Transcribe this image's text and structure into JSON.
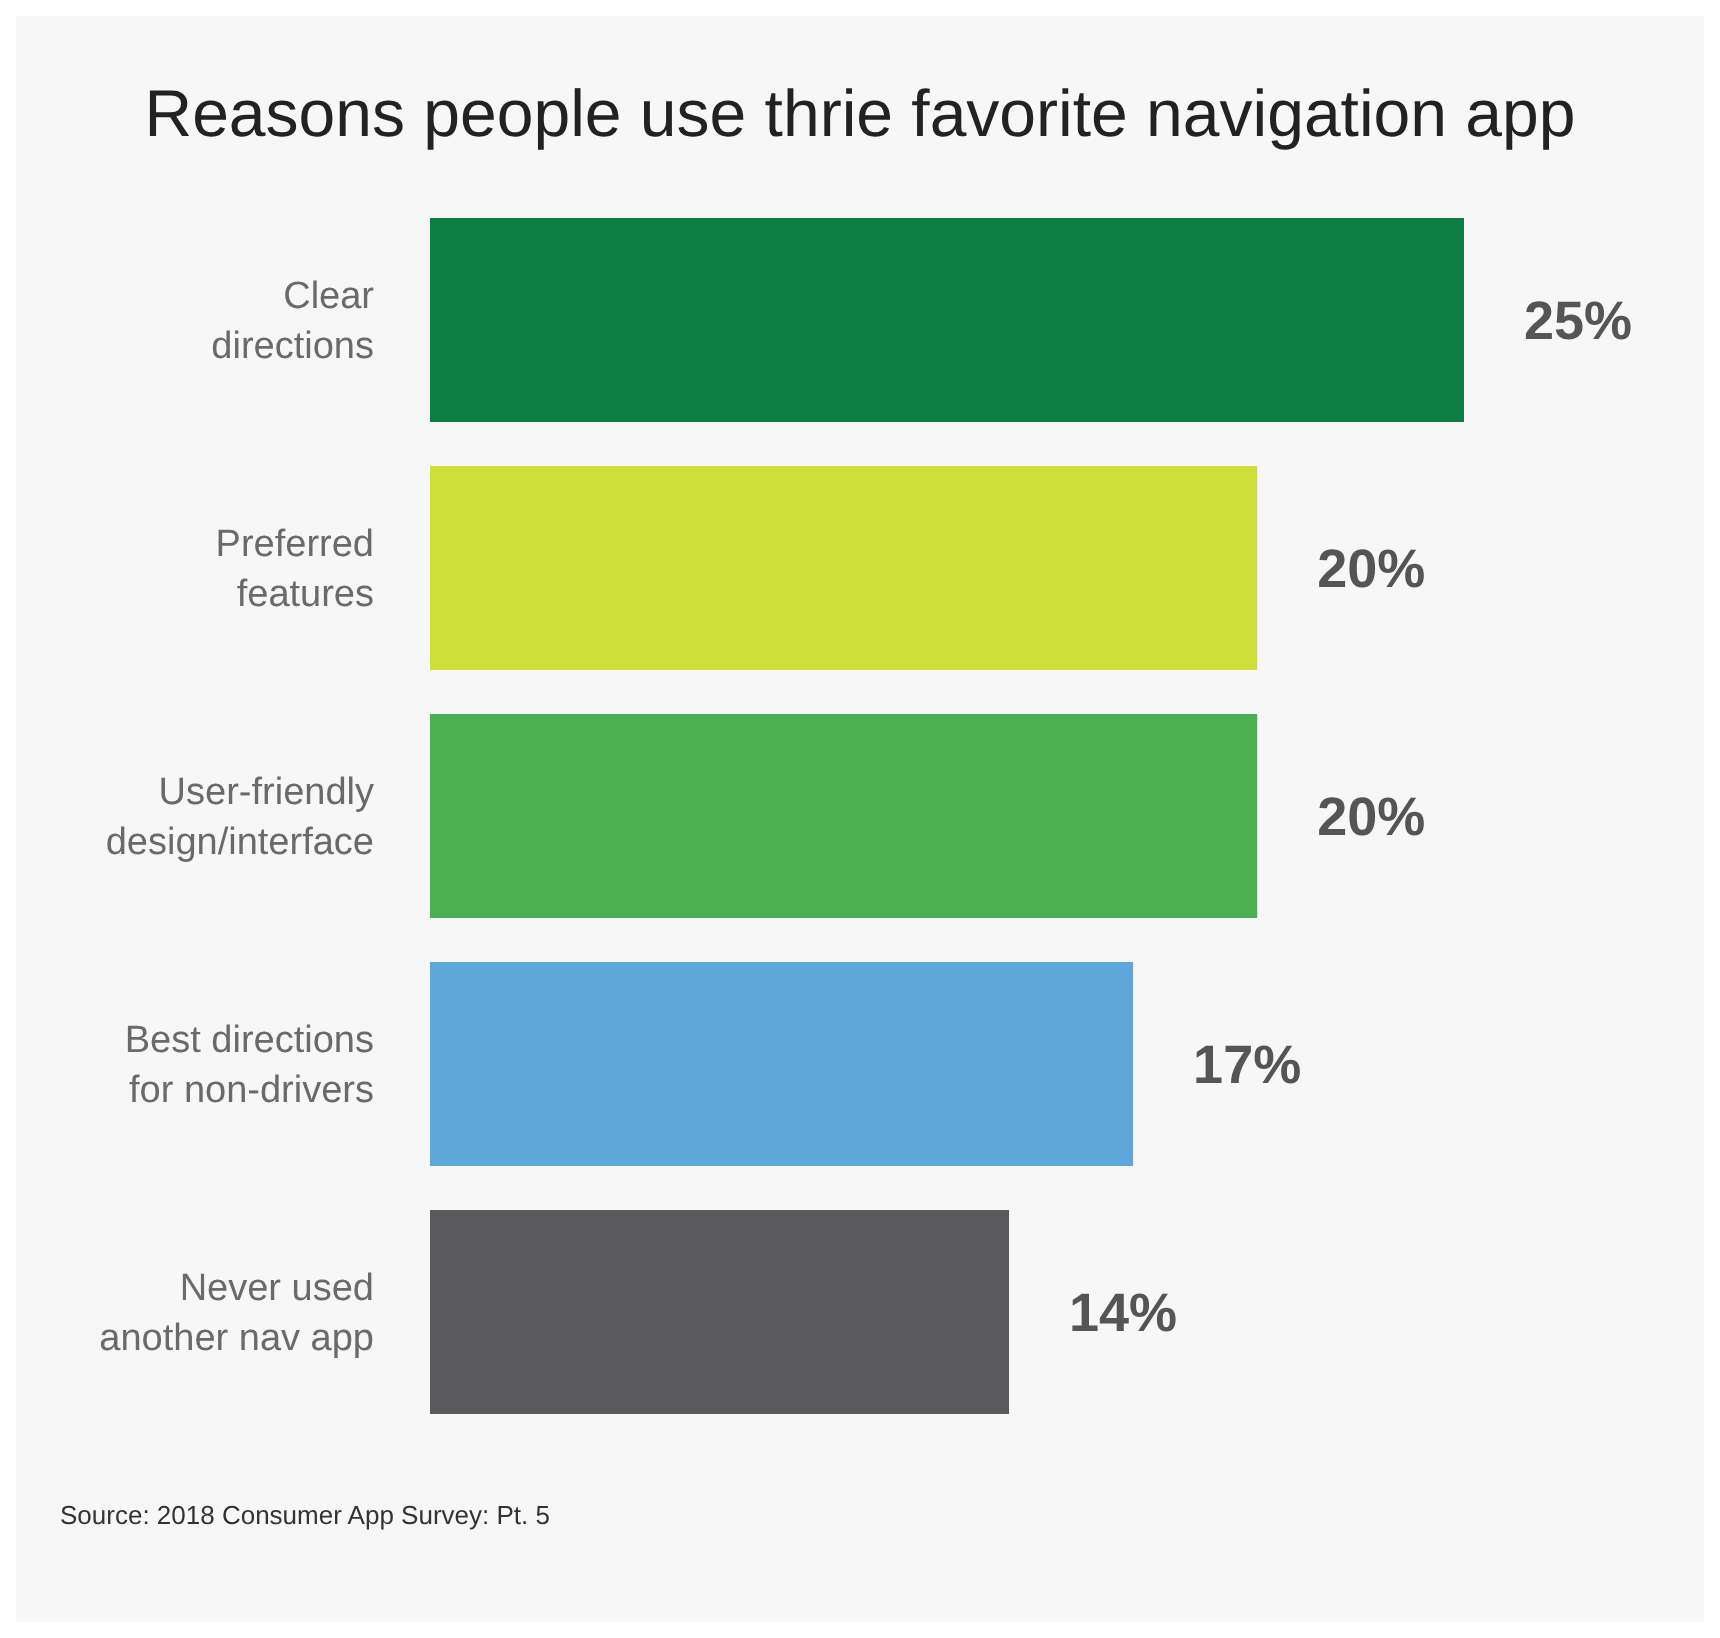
{
  "chart_data": {
    "type": "bar",
    "orientation": "horizontal",
    "title": "Reasons people use thrie favorite navigation app",
    "categories": [
      "Clear directions",
      "Preferred features",
      "User-friendly design/interface",
      "Best directions for non-drivers",
      "Never used another nav app"
    ],
    "values": [
      25,
      20,
      20,
      17,
      14
    ],
    "colors": [
      "#0b7d40",
      "#cfdf3a",
      "#4ab050",
      "#5fa7db",
      "#5a5a5c"
    ],
    "value_labels": [
      "25%",
      "20%",
      "20%",
      "17%",
      "14%"
    ],
    "annotations": [
      "Source: 2018 Consumer App Survey: Pt. 5"
    ]
  }
}
